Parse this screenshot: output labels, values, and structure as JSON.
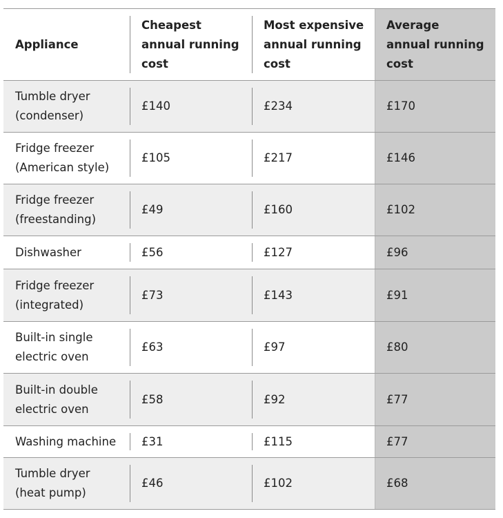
{
  "table": {
    "header": [
      "Appliance",
      "Cheapest annual running cost",
      "Most expensive annual running cost",
      "Average annual running cost"
    ],
    "rows": [
      [
        "Tumble dryer (condenser)",
        "£140",
        "£234",
        "£170"
      ],
      [
        "Fridge freezer (American style)",
        "£105",
        "£217",
        "£146"
      ],
      [
        "Fridge freezer (freestanding)",
        "£49",
        "£160",
        "£102"
      ],
      [
        "Dishwasher",
        "£56",
        "£127",
        "£96"
      ],
      [
        "Fridge freezer (integrated)",
        "£73",
        "£143",
        "£91"
      ],
      [
        "Built-in single electric oven",
        "£63",
        "£97",
        "£80"
      ],
      [
        "Built-in double electric oven",
        "£58",
        "£92",
        "£77"
      ],
      [
        "Washing machine",
        "£31",
        "£115",
        "£77"
      ],
      [
        "Tumble dryer (heat pump)",
        "£46",
        "£102",
        "£68"
      ]
    ]
  }
}
